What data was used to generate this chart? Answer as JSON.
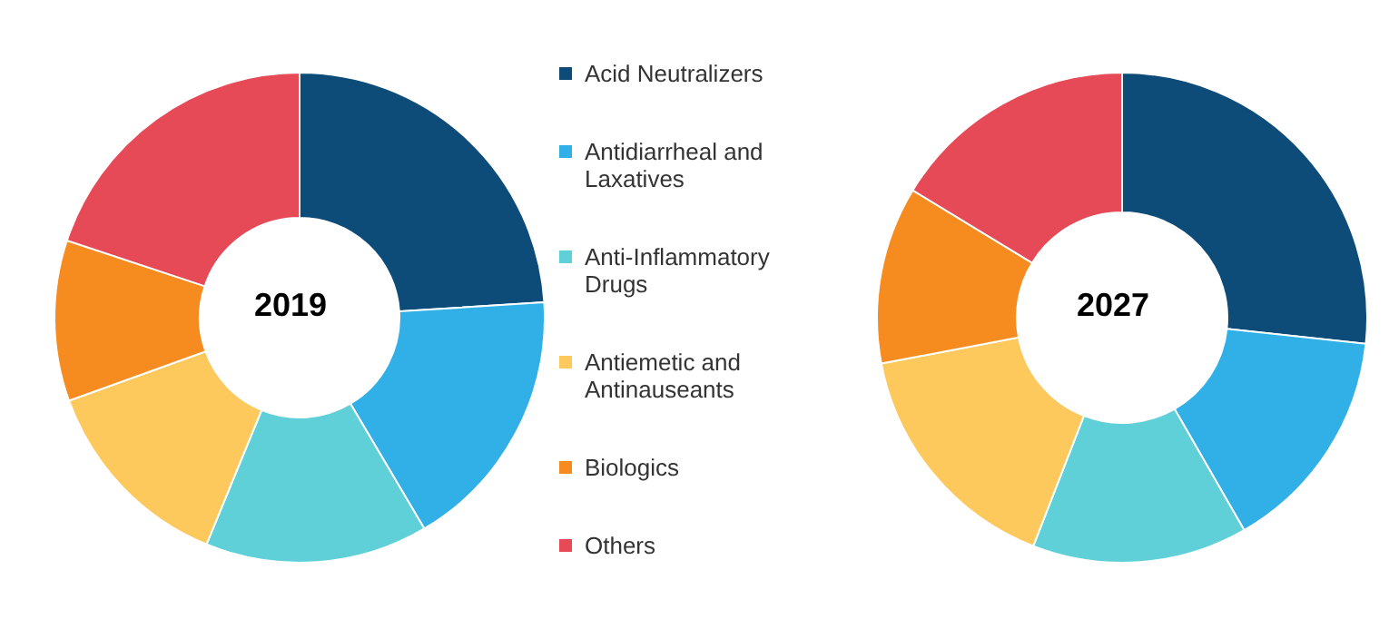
{
  "chart_data": {
    "type": "donut",
    "categories": [
      "Acid Neutralizers",
      "Antidiarrheal and Laxatives",
      "Anti-Inflammatory Drugs",
      "Antiemetic and Antinauseants",
      "Biologics",
      "Others"
    ],
    "colors": [
      "#0d4b78",
      "#30b0e6",
      "#5fd0d8",
      "#fdc85c",
      "#f68c20",
      "#e64a57"
    ],
    "legend": "right",
    "series": [
      {
        "name": "2019",
        "values": [
          24,
          17.5,
          14.7,
          13.3,
          10.6,
          19.9
        ]
      },
      {
        "name": "2027",
        "values": [
          26.7,
          15,
          14.2,
          16.1,
          11.7,
          16.3
        ]
      }
    ]
  }
}
